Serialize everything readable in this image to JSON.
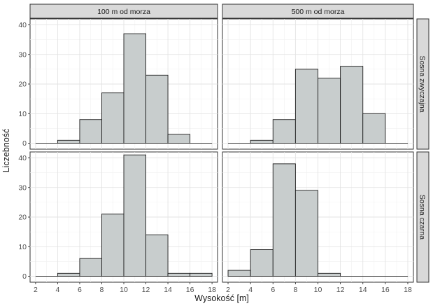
{
  "chart_data": {
    "type": "bar",
    "subtype": "faceted-histogram",
    "xlabel": "Wysokość [m]",
    "ylabel": "Liczebność",
    "column_facets": [
      "100 m od morza",
      "500 m od morza"
    ],
    "row_facets": [
      "Sosna zwyczajna",
      "Sosna czarna"
    ],
    "xlim": [
      1.5,
      18.5
    ],
    "ylim": [
      -2,
      42
    ],
    "x_ticks": [
      2,
      4,
      6,
      8,
      10,
      12,
      14,
      16,
      18
    ],
    "y_ticks": [
      0,
      10,
      20,
      30,
      40
    ],
    "grid": true,
    "bar_color": "#c8cdcd",
    "bar_outline": "#1a1a1a",
    "strip_color": "#d9d9d9",
    "bin_edges": [
      2,
      4,
      6,
      8,
      10,
      12,
      14,
      16,
      18
    ],
    "panels": [
      {
        "row": "Sosna zwyczajna",
        "column": "100 m od morza",
        "counts": [
          0,
          1,
          8,
          17,
          37,
          23,
          3,
          0
        ]
      },
      {
        "row": "Sosna zwyczajna",
        "column": "500 m od morza",
        "counts": [
          0,
          1,
          8,
          25,
          22,
          26,
          10,
          0
        ]
      },
      {
        "row": "Sosna czarna",
        "column": "100 m od morza",
        "counts": [
          0,
          1,
          6,
          21,
          41,
          14,
          1,
          1
        ]
      },
      {
        "row": "Sosna czarna",
        "column": "500 m od morza",
        "counts": [
          2,
          9,
          38,
          29,
          1,
          0,
          0,
          0
        ]
      }
    ]
  }
}
